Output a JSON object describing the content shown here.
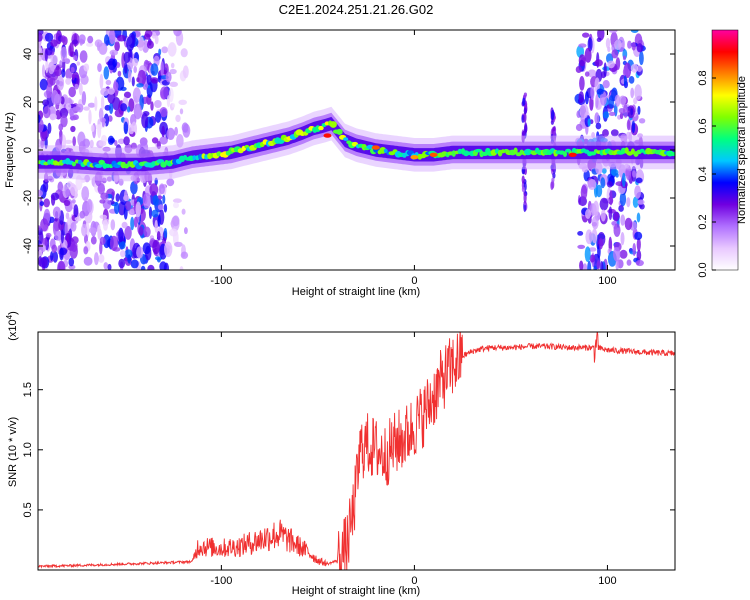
{
  "chart_data": [
    {
      "type": "heatmap",
      "title": "C2E1.2024.251.21.26.G02",
      "xlabel": "Height of straight line (km)",
      "ylabel": "Frequency (Hz)",
      "xlim": [
        -195,
        135
      ],
      "ylim": [
        -50,
        50
      ],
      "xticks": [
        -100,
        0,
        100
      ],
      "yticks": [
        -40,
        -20,
        0,
        20,
        40
      ],
      "colorbar": {
        "label": "Normalized spectral amplitude",
        "range": [
          0,
          1
        ],
        "ticks": [
          0.0,
          0.2,
          0.4,
          0.6,
          0.8
        ],
        "tick_labels": [
          "0.0",
          "0.2",
          "0.4",
          "0.6",
          "0.8"
        ],
        "colors": [
          "#ffffff",
          "#e8c8ff",
          "#b070ff",
          "#7000e0",
          "#0000ff",
          "#00c8ff",
          "#00ff80",
          "#80ff00",
          "#ffff00",
          "#ff8000",
          "#ff0000",
          "#ff00a0"
        ]
      },
      "ridge": {
        "x": [
          -195,
          -180,
          -160,
          -140,
          -125,
          -115,
          -105,
          -95,
          -85,
          -75,
          -65,
          -58,
          -52,
          -47,
          -43,
          -40,
          -36,
          -30,
          -20,
          -10,
          0,
          10,
          20,
          40,
          60,
          80,
          100,
          120,
          135
        ],
        "y": [
          -5,
          -5,
          -6,
          -6,
          -5,
          -3,
          -2,
          -1,
          1,
          3,
          5,
          7,
          9,
          10,
          11,
          8,
          4,
          2,
          0,
          -1,
          -2,
          -2,
          -1,
          -1,
          -1,
          -1,
          -1,
          -1,
          -1
        ]
      },
      "peaks": [
        {
          "x": -45,
          "y": 6,
          "amplitude": 0.9
        },
        {
          "x": -20,
          "y": 1,
          "amplitude": 0.85
        },
        {
          "x": 0,
          "y": -3,
          "amplitude": 0.8
        },
        {
          "x": 10,
          "y": -2,
          "amplitude": 0.85
        },
        {
          "x": 82,
          "y": -2,
          "amplitude": 0.9
        }
      ]
    },
    {
      "type": "line",
      "xlabel": "Height of straight line (km)",
      "ylabel": "SNR (10 * v/v)",
      "yscale_note": "(x10^4)",
      "xlim": [
        -195,
        135
      ],
      "ylim": [
        0,
        1.98
      ],
      "xticks": [
        -100,
        0,
        100
      ],
      "yticks": [
        0.5,
        1.0,
        1.5
      ],
      "ytick_labels": [
        "0.5",
        "1.0",
        "1.5"
      ],
      "color": "#f03030",
      "series": [
        {
          "x": [
            -195,
            -170,
            -150,
            -130,
            -115,
            -112,
            -100,
            -90,
            -80,
            -75,
            -70,
            -65,
            -60,
            -55,
            -50,
            -45,
            -40,
            -35,
            -32,
            -30,
            -28,
            -25,
            -20,
            -15,
            -10,
            -5,
            0,
            5,
            10,
            15,
            20,
            25,
            30,
            35,
            40,
            50,
            60,
            70,
            80,
            90,
            94,
            100,
            110,
            120,
            135
          ],
          "y": [
            0.03,
            0.04,
            0.05,
            0.06,
            0.07,
            0.2,
            0.18,
            0.2,
            0.25,
            0.28,
            0.3,
            0.25,
            0.2,
            0.15,
            0.08,
            0.05,
            0.08,
            0.2,
            0.45,
            0.7,
            1.0,
            1.05,
            1.0,
            0.95,
            1.05,
            1.1,
            1.2,
            1.3,
            1.45,
            1.6,
            1.7,
            1.78,
            1.82,
            1.84,
            1.85,
            1.85,
            1.86,
            1.86,
            1.85,
            1.85,
            1.85,
            1.83,
            1.82,
            1.81,
            1.8
          ]
        }
      ]
    }
  ]
}
